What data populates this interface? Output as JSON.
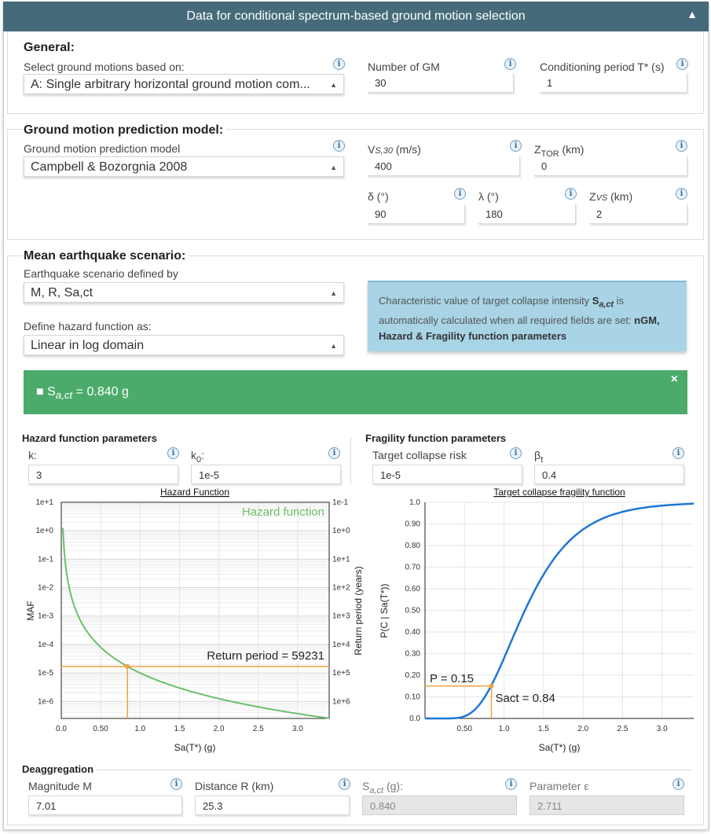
{
  "header": {
    "title": "Data for conditional spectrum-based ground motion selection",
    "toggle_icon": "caret-up-icon"
  },
  "general": {
    "heading": "General:",
    "select_label": "Select ground motions based on:",
    "select_value": "A: Single arbitrary horizontal ground motion com...",
    "ngm_label": "Number of GM",
    "ngm_value": "30",
    "tstar_label": "Conditioning period T* (s)",
    "tstar_value": "1"
  },
  "gmpm": {
    "heading": "Ground motion prediction model:",
    "model_label": "Ground motion prediction model",
    "model_value": "Campbell & Bozorgnia 2008",
    "vs30_label": "V",
    "vs30_sub": "S,30",
    "vs30_unit": " (m/s)",
    "vs30_value": "400",
    "ztor_label": "Z",
    "ztor_sub": "TOR",
    "ztor_unit": " (km)",
    "ztor_value": "0",
    "delta_label": "δ (°)",
    "delta_value": "90",
    "lambda_label": "λ (°)",
    "lambda_value": "180",
    "zvs_label": "Z",
    "zvs_sub": "VS",
    "zvs_unit": " (km)",
    "zvs_value": "2"
  },
  "scenario": {
    "heading": "Mean earthquake scenario:",
    "defined_label": "Earthquake scenario defined by",
    "defined_value": "M, R, Sa,ct",
    "hazard_label": "Define hazard function as:",
    "hazard_value": "Linear in log domain",
    "info_text_1": "Characteristic value of target collapse intensity ",
    "info_bold_1": "S",
    "info_bold_sub": "a,ct",
    "info_text_2": " is automatically calculated when all required fields are set: ",
    "info_bold_2": "nGM, Hazard & Fragility function parameters",
    "result_prefix": "S",
    "result_sub": "a,ct",
    "result_value": " = 0.840 g",
    "close_icon": "×"
  },
  "hazard_params": {
    "heading": "Hazard function parameters",
    "k_label": "k:",
    "k_value": "3",
    "k0_label": "k",
    "k0_sub": "0",
    "k0_colon": ":",
    "k0_value": "1e-5"
  },
  "fragility_params": {
    "heading": "Fragility function parameters",
    "risk_label": "Target collapse risk",
    "risk_value": "1e-5",
    "beta_label": "β",
    "beta_sub": "t",
    "beta_value": "0.4"
  },
  "chart_data": [
    {
      "type": "line",
      "title": "Hazard Function",
      "legend": "Hazard function",
      "xlabel": "Sa(T*) (g)",
      "ylabel": "MAF",
      "y2label": "Return period (years)",
      "x_ticks": [
        "0.0",
        "0.50",
        "1.0",
        "1.5",
        "2.0",
        "2.5",
        "3.0"
      ],
      "y_ticks": [
        "1e+1",
        "1e+0",
        "1e-1",
        "1e-2",
        "1e-3",
        "1e-4",
        "1e-5",
        "1e-6"
      ],
      "y2_ticks": [
        "1e-1",
        "1e+0",
        "1e+1",
        "1e+2",
        "1e+3",
        "1e+4",
        "1e+5",
        "1e+6"
      ],
      "xlim": [
        0,
        3.4
      ],
      "ylim_log10": [
        -6.6,
        1
      ],
      "scale": "log",
      "series": [
        {
          "name": "Hazard function",
          "color": "#6cbf6c",
          "k0": 1e-05,
          "k": 3,
          "x_start": 0.02,
          "x_end": 3.4
        }
      ],
      "marker": {
        "x": 0.84,
        "y": 1.6884e-05
      },
      "annotation": "Return period = 59231",
      "grid": true
    },
    {
      "type": "line",
      "title": "Target collapse fragility function",
      "xlabel": "Sa(T*) (g)",
      "ylabel": "P(C | Sa(T*))",
      "x_ticks": [
        "0.50",
        "1.0",
        "1.5",
        "2.0",
        "2.5",
        "3.0"
      ],
      "y_ticks": [
        "0.0",
        "0.10",
        "0.20",
        "0.30",
        "0.40",
        "0.50",
        "0.60",
        "0.70",
        "0.80",
        "0.90",
        "1.0"
      ],
      "xlim": [
        0,
        3.4
      ],
      "ylim": [
        0,
        1
      ],
      "series": [
        {
          "name": "",
          "color": "#1f77d4",
          "median": 1.264,
          "beta": 0.4
        }
      ],
      "marker": {
        "x": 0.84,
        "y": 0.15
      },
      "annotation_p": "P = 0.15",
      "annotation_s": "Sact = 0.84",
      "grid": true
    }
  ],
  "deagg": {
    "heading": "Deaggregation",
    "m_label": "Magnitude M",
    "m_value": "7.01",
    "r_label": "Distance R (km)",
    "r_value": "25.3",
    "sa_label": "S",
    "sa_sub": "a,ct",
    "sa_unit": " (g):",
    "sa_value": "0.840",
    "eps_label": "Parameter ε",
    "eps_value": "2.711"
  },
  "info_icon": "i"
}
